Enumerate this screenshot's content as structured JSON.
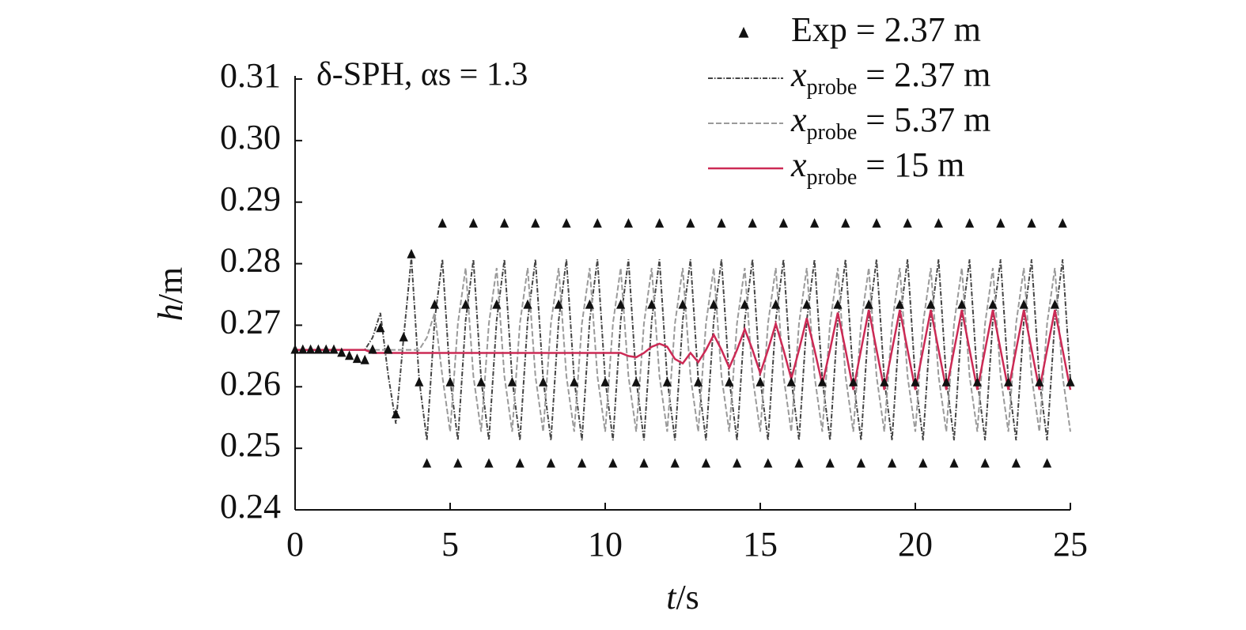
{
  "chart_data": {
    "type": "line",
    "title": "δ-SPH, αs = 1.3",
    "x_label": "t/s",
    "y_label": "h/m",
    "xlim": [
      0,
      25
    ],
    "ylim": [
      0.24,
      0.31
    ],
    "xticks": [
      0,
      5,
      10,
      15,
      20,
      25
    ],
    "yticks": [
      0.24,
      0.25,
      0.26,
      0.27,
      0.28,
      0.29,
      {
        "value": 0.3,
        "label": "0.30"
      },
      0.31
    ],
    "grid": false,
    "legend": "top-right",
    "x": [
      0,
      0.25,
      0.5,
      0.75,
      1,
      1.25,
      1.5,
      1.75,
      2,
      2.25,
      2.5,
      2.75,
      3,
      3.25,
      3.5,
      3.75,
      4,
      4.25,
      4.5,
      4.75,
      5,
      5.25,
      5.5,
      5.75,
      6,
      6.25,
      6.5,
      6.75,
      7,
      7.25,
      7.5,
      7.75,
      8,
      8.25,
      8.5,
      8.75,
      9,
      9.25,
      9.5,
      9.75,
      10,
      10.25,
      10.5,
      10.75,
      11,
      11.25,
      11.5,
      11.75,
      12,
      12.25,
      12.5,
      12.75,
      13,
      13.25,
      13.5,
      13.75,
      14,
      14.25,
      14.5,
      14.75,
      15,
      15.25,
      15.5,
      15.75,
      16,
      16.25,
      16.5,
      16.75,
      17,
      17.25,
      17.5,
      17.75,
      18,
      18.25,
      18.5,
      18.75,
      19,
      19.25,
      19.5,
      19.75,
      20,
      20.25,
      20.5,
      20.75,
      21,
      21.25,
      21.5,
      21.75,
      22,
      22.25,
      22.5,
      22.75,
      23,
      23.25,
      23.5,
      23.75,
      24,
      24.25,
      24.5,
      24.75,
      25
    ],
    "series": [
      {
        "name": "Exp  = 2.37 m",
        "style": "markers",
        "color": "#111111",
        "values": [
          0.266,
          0.266,
          0.266,
          0.266,
          0.266,
          0.266,
          0.2655,
          0.265,
          0.2645,
          0.2643,
          0.266,
          0.2695,
          0.266,
          0.2555,
          0.268,
          0.2815,
          0.2607,
          0.2475,
          0.2733,
          0.2865,
          0.2607,
          0.2475,
          0.2733,
          0.2865,
          0.2607,
          0.2475,
          0.2733,
          0.2865,
          0.2607,
          0.2475,
          0.2733,
          0.2865,
          0.2607,
          0.2475,
          0.2733,
          0.2865,
          0.2607,
          0.2475,
          0.2733,
          0.2865,
          0.2607,
          0.2475,
          0.2733,
          0.2865,
          0.2607,
          0.2475,
          0.2733,
          0.2865,
          0.2607,
          0.2475,
          0.2733,
          0.2865,
          0.2607,
          0.2475,
          0.2733,
          0.2865,
          0.2607,
          0.2475,
          0.2733,
          0.2865,
          0.2607,
          0.2475,
          0.2733,
          0.2865,
          0.2607,
          0.2475,
          0.2733,
          0.2865,
          0.2607,
          0.2475,
          0.2733,
          0.2865,
          0.2607,
          0.2475,
          0.2733,
          0.2865,
          0.2607,
          0.2475,
          0.2733,
          0.2865,
          0.2607,
          0.2475,
          0.2733,
          0.2865,
          0.2607,
          0.2475,
          0.2733,
          0.2865,
          0.2607,
          0.2475,
          0.2733,
          0.2865,
          0.2607,
          0.2475,
          0.2733,
          0.2865,
          0.2607,
          0.2475,
          0.2733,
          0.2865,
          0.2607
        ]
      },
      {
        "name": "xprobe = 2.37 m",
        "style": "dashdot",
        "color": "#444444",
        "values": [
          0.266,
          0.266,
          0.266,
          0.266,
          0.266,
          0.266,
          0.266,
          0.266,
          0.266,
          0.266,
          0.268,
          0.272,
          0.262,
          0.254,
          0.268,
          0.281,
          0.2612,
          0.2513,
          0.2708,
          0.2807,
          0.2612,
          0.2513,
          0.2708,
          0.2807,
          0.2612,
          0.2513,
          0.2708,
          0.2807,
          0.2612,
          0.2513,
          0.2708,
          0.2807,
          0.2612,
          0.2513,
          0.2708,
          0.2807,
          0.2612,
          0.2513,
          0.2708,
          0.2807,
          0.2612,
          0.2513,
          0.2708,
          0.2807,
          0.2612,
          0.2513,
          0.2708,
          0.2807,
          0.2612,
          0.2513,
          0.2708,
          0.2807,
          0.2612,
          0.2513,
          0.2708,
          0.2807,
          0.2612,
          0.2513,
          0.2708,
          0.2807,
          0.2612,
          0.2513,
          0.2708,
          0.2807,
          0.2612,
          0.2513,
          0.2708,
          0.2807,
          0.2612,
          0.2513,
          0.2708,
          0.2807,
          0.2612,
          0.2513,
          0.2708,
          0.2807,
          0.2612,
          0.2513,
          0.2708,
          0.2807,
          0.2612,
          0.2513,
          0.2708,
          0.2807,
          0.2612,
          0.2513,
          0.2708,
          0.2807,
          0.2612,
          0.2513,
          0.2708,
          0.2807,
          0.2612,
          0.2513,
          0.2708,
          0.2807,
          0.2612,
          0.2513,
          0.2708,
          0.2807,
          0.2612
        ]
      },
      {
        "name": "xprobe = 5.37 m",
        "style": "dashed",
        "color": "#9a9a9a",
        "values": [
          0.266,
          0.266,
          0.266,
          0.266,
          0.266,
          0.266,
          0.266,
          0.266,
          0.266,
          0.266,
          0.266,
          0.266,
          0.266,
          0.266,
          0.266,
          0.266,
          0.266,
          0.268,
          0.272,
          0.2617,
          0.2527,
          0.2703,
          0.2793,
          0.2617,
          0.2527,
          0.2703,
          0.2793,
          0.2617,
          0.2527,
          0.2703,
          0.2793,
          0.2617,
          0.2527,
          0.2703,
          0.2793,
          0.2617,
          0.2527,
          0.2703,
          0.2793,
          0.2617,
          0.2527,
          0.2703,
          0.2793,
          0.2617,
          0.2527,
          0.2703,
          0.2793,
          0.2617,
          0.2527,
          0.2703,
          0.2793,
          0.2617,
          0.2527,
          0.2703,
          0.2793,
          0.2617,
          0.2527,
          0.2703,
          0.2793,
          0.2617,
          0.2527,
          0.2703,
          0.2793,
          0.2617,
          0.2527,
          0.2703,
          0.2793,
          0.2617,
          0.2527,
          0.2703,
          0.2793,
          0.2617,
          0.2527,
          0.2703,
          0.2793,
          0.2617,
          0.2527,
          0.2703,
          0.2793,
          0.2617,
          0.2527,
          0.2703,
          0.2793,
          0.2617,
          0.2527,
          0.2703,
          0.2793,
          0.2617,
          0.2527,
          0.2703,
          0.2793,
          0.2617,
          0.2527,
          0.2703,
          0.2793,
          0.2617,
          0.2527,
          0.2703,
          0.2793,
          0.2617,
          0.2527
        ]
      },
      {
        "name": "xprobe = 15 m",
        "style": "solid",
        "color": "#cc2a55",
        "values": [
          0.266,
          0.266,
          0.266,
          0.266,
          0.266,
          0.266,
          0.266,
          0.266,
          0.266,
          0.266,
          0.2655,
          0.2655,
          0.2655,
          0.2655,
          0.2655,
          0.2655,
          0.2655,
          0.2655,
          0.2655,
          0.2655,
          0.2655,
          0.2655,
          0.2655,
          0.2655,
          0.2655,
          0.2655,
          0.2655,
          0.2655,
          0.2655,
          0.2655,
          0.2655,
          0.2655,
          0.2655,
          0.2655,
          0.2655,
          0.2655,
          0.2655,
          0.2655,
          0.2655,
          0.2655,
          0.2655,
          0.2655,
          0.2655,
          0.265,
          0.2648,
          0.2655,
          0.2665,
          0.267,
          0.2665,
          0.2645,
          0.2638,
          0.2655,
          0.264,
          0.266,
          0.26845,
          0.266,
          0.2631,
          0.266,
          0.26935,
          0.266,
          0.2622,
          0.266,
          0.27025,
          0.266,
          0.2613,
          0.266,
          0.27115,
          0.266,
          0.2604,
          0.266,
          0.27205,
          0.266,
          0.2595,
          0.266,
          0.2725,
          0.266,
          0.2595,
          0.266,
          0.2725,
          0.266,
          0.2595,
          0.266,
          0.2725,
          0.266,
          0.2595,
          0.266,
          0.2725,
          0.266,
          0.2595,
          0.266,
          0.2725,
          0.266,
          0.2595,
          0.266,
          0.2725,
          0.266,
          0.2595,
          0.266,
          0.2725,
          0.266,
          0.2595
        ]
      }
    ]
  }
}
